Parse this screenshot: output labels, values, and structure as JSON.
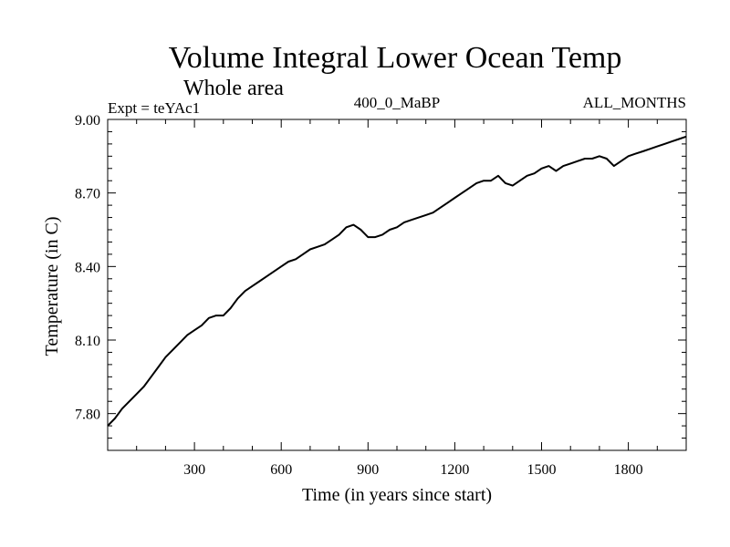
{
  "chart_data": {
    "type": "line",
    "title": "Volume Integral Lower Ocean Temp",
    "subtitle": "Whole area",
    "experiment": "Expt = teYAc1",
    "period": "400_0_MaBP",
    "months": "ALL_MONTHS",
    "xlabel": "Time (in years since start)",
    "ylabel": "Temperature (in C)",
    "xlim": [
      0,
      2000
    ],
    "ylim": [
      7.65,
      9.0
    ],
    "xticks": [
      300,
      600,
      900,
      1200,
      1500,
      1800
    ],
    "xtick_labels": [
      "300",
      "600",
      "900",
      "1200",
      "1500",
      "1800"
    ],
    "yticks": [
      7.8,
      8.1,
      8.4,
      8.7,
      9.0
    ],
    "ytick_labels": [
      "7.80",
      "8.10",
      "8.40",
      "8.70",
      "9.00"
    ],
    "line_color": "#000000",
    "series": [
      {
        "name": "teYAc1",
        "x": [
          0,
          25,
          50,
          75,
          100,
          125,
          150,
          175,
          200,
          225,
          250,
          275,
          300,
          325,
          350,
          375,
          400,
          425,
          450,
          475,
          500,
          525,
          550,
          575,
          600,
          625,
          650,
          675,
          700,
          725,
          750,
          775,
          800,
          825,
          850,
          875,
          900,
          925,
          950,
          975,
          1000,
          1025,
          1050,
          1075,
          1100,
          1125,
          1150,
          1175,
          1200,
          1225,
          1250,
          1275,
          1300,
          1325,
          1350,
          1375,
          1400,
          1425,
          1450,
          1475,
          1500,
          1525,
          1550,
          1575,
          1600,
          1625,
          1650,
          1675,
          1700,
          1725,
          1750,
          1775,
          1800,
          1825,
          1850,
          1875,
          1900,
          1925,
          1950,
          1975,
          2000
        ],
        "y": [
          7.75,
          7.78,
          7.82,
          7.85,
          7.88,
          7.91,
          7.95,
          7.99,
          8.03,
          8.06,
          8.09,
          8.12,
          8.14,
          8.16,
          8.19,
          8.2,
          8.2,
          8.23,
          8.27,
          8.3,
          8.32,
          8.34,
          8.36,
          8.38,
          8.4,
          8.42,
          8.43,
          8.45,
          8.47,
          8.48,
          8.49,
          8.51,
          8.53,
          8.56,
          8.57,
          8.55,
          8.52,
          8.52,
          8.53,
          8.55,
          8.56,
          8.58,
          8.59,
          8.6,
          8.61,
          8.62,
          8.64,
          8.66,
          8.68,
          8.7,
          8.72,
          8.74,
          8.75,
          8.75,
          8.77,
          8.74,
          8.73,
          8.75,
          8.77,
          8.78,
          8.8,
          8.81,
          8.79,
          8.81,
          8.82,
          8.83,
          8.84,
          8.84,
          8.85,
          8.84,
          8.81,
          8.83,
          8.85,
          8.86,
          8.87,
          8.88,
          8.89,
          8.9,
          8.91,
          8.92,
          8.93
        ]
      }
    ]
  }
}
